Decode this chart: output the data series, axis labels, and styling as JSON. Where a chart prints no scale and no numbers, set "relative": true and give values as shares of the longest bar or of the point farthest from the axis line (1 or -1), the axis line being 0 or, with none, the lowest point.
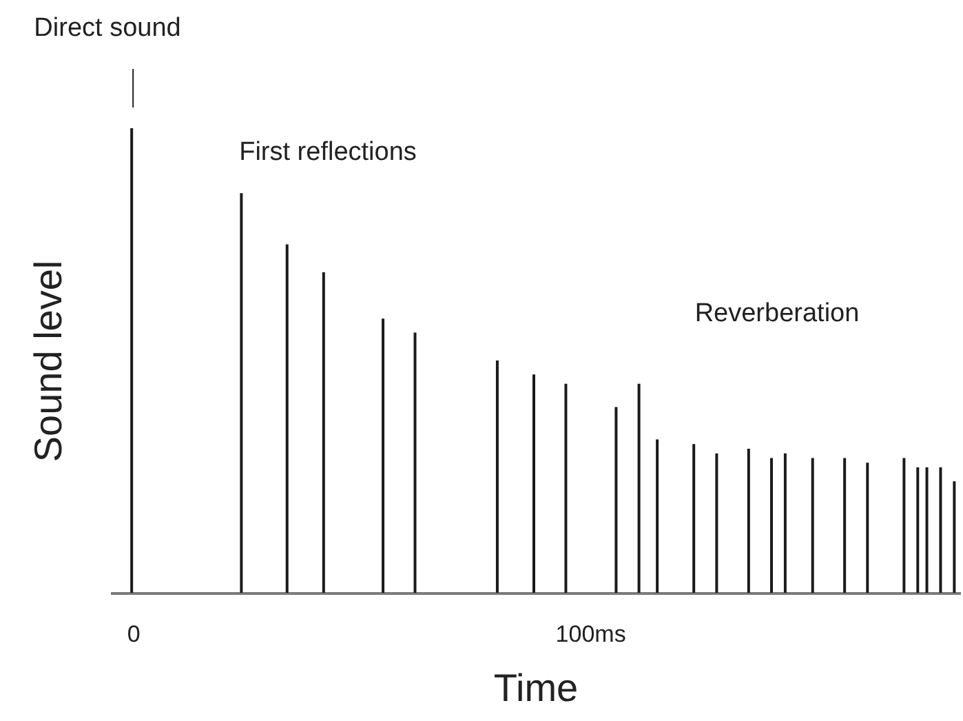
{
  "chart_data": {
    "type": "bar",
    "xlabel": "Time",
    "ylabel": "Sound level",
    "relative": true,
    "color": "#1a1a1a",
    "x": [
      0,
      24,
      34,
      42,
      55,
      62,
      80,
      88,
      95,
      106,
      111,
      115,
      123,
      128,
      135,
      140,
      143,
      149,
      156,
      161,
      169,
      172,
      174,
      177,
      180
    ],
    "values": [
      1,
      0.86,
      0.75,
      0.69,
      0.59,
      0.56,
      0.5,
      0.47,
      0.45,
      0.4,
      0.45,
      0.33,
      0.32,
      0.3,
      0.31,
      0.29,
      0.3,
      0.29,
      0.29,
      0.28,
      0.29,
      0.27,
      0.27,
      0.27,
      0.24
    ],
    "xlim": [
      -5,
      181
    ],
    "xticks": [
      0,
      {
        "value": 100,
        "label": "100ms"
      }
    ],
    "annotations": [
      "Direct sound",
      "First reflections",
      "Reverberation"
    ]
  }
}
